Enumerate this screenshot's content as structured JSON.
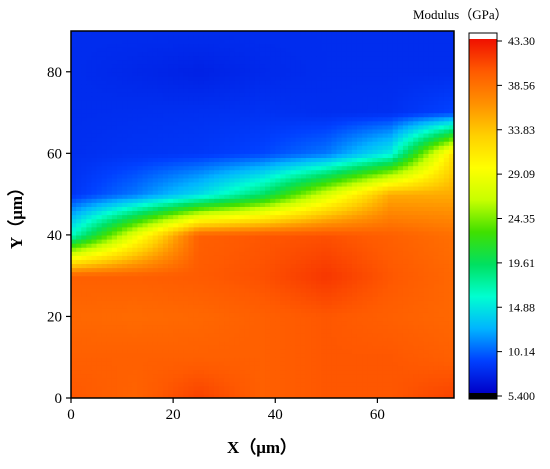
{
  "chart_data": {
    "type": "heatmap",
    "title": "",
    "xlabel": "X（μm）",
    "ylabel": "Y（μm）",
    "xlim": [
      0,
      75
    ],
    "ylim": [
      0,
      90
    ],
    "x_ticks": [
      "0",
      "20",
      "40",
      "60"
    ],
    "y_ticks": [
      "0",
      "20",
      "40",
      "60",
      "80"
    ],
    "grid": false,
    "colorbar": {
      "title": "Modulus（GPa）",
      "range": [
        5.4,
        43.3
      ],
      "tick_labels": [
        "43.30",
        "38.56",
        "33.83",
        "29.09",
        "24.35",
        "19.61",
        "14.88",
        "10.14",
        "5.400"
      ],
      "colormap": [
        "#0000c8",
        "#0040ff",
        "#00b4ff",
        "#00ffd0",
        "#00e060",
        "#40e000",
        "#c8ff00",
        "#ffff00",
        "#ffd000",
        "#ff9000",
        "#ff5a00",
        "#f01000"
      ]
    },
    "grid_x": [
      0,
      12.5,
      25,
      37.5,
      50,
      62.5,
      75
    ],
    "grid_y": [
      0,
      10,
      20,
      30,
      40,
      50,
      60,
      70,
      80,
      90
    ],
    "values": [
      [
        40.0,
        39.3,
        41.0,
        39.5,
        40.0,
        40.0,
        41.0
      ],
      [
        39.5,
        39.5,
        39.5,
        39.5,
        40.0,
        40.0,
        39.5
      ],
      [
        39.0,
        38.8,
        39.0,
        39.5,
        40.0,
        39.5,
        39.0
      ],
      [
        39.5,
        39.5,
        39.8,
        40.3,
        41.5,
        40.0,
        39.0
      ],
      [
        16.0,
        28.0,
        39.5,
        40.0,
        40.3,
        39.5,
        38.5
      ],
      [
        8.2,
        10.5,
        14.0,
        19.0,
        27.0,
        35.0,
        35.0
      ],
      [
        7.9,
        8.2,
        8.4,
        9.0,
        10.5,
        15.0,
        32.0
      ],
      [
        7.8,
        7.9,
        8.0,
        8.1,
        7.9,
        8.0,
        9.0
      ],
      [
        7.8,
        7.5,
        7.2,
        7.6,
        7.8,
        7.8,
        7.8
      ],
      [
        7.8,
        7.8,
        7.8,
        7.8,
        7.8,
        7.8,
        7.8
      ]
    ]
  }
}
